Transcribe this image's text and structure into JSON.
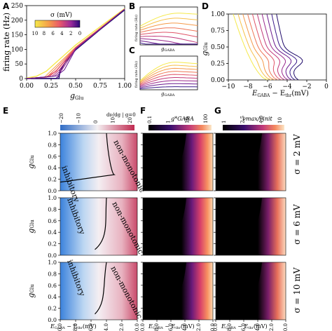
{
  "panel_labels": {
    "A": "A",
    "B": "B",
    "C": "C",
    "D": "D",
    "E": "E",
    "F": "F",
    "G": "G"
  },
  "colors": {
    "sigma_high": "#f5e94a",
    "sigma_mid": "#e8586a",
    "sigma_low": "#3a1a8a",
    "inhibitory": "#3d7fd6",
    "nonmonotonic": "#c9385a",
    "heat_dark": "#000000",
    "heat_mid": "#9b2a8a",
    "heat_bright": "#f7c5a0"
  },
  "panelA": {
    "ylabel": "firing rate (Hz)",
    "xlabel": "g",
    "xlabel_sub": "Glu",
    "yticks": [
      "0",
      "50",
      "100",
      "150",
      "200",
      "250"
    ],
    "xticks": [
      "0.00",
      "0.25",
      "0.50",
      "0.75",
      "1.00"
    ],
    "colorbar_title": "σ (mV)",
    "colorbar_ticks": [
      "10",
      "8",
      "6",
      "4",
      "2",
      "0"
    ]
  },
  "panelB": {
    "ylabel": "firing rate (Hz)",
    "xlabel": "g",
    "xlabel_sub": "GABA"
  },
  "panelC": {
    "ylabel": "firing rate (Hz)",
    "xlabel": "g",
    "xlabel_sub": "GABA"
  },
  "panelD": {
    "ylabel": "g",
    "ylabel_sub": "Glu",
    "xlabel": "E",
    "xlabel_sub1": "GABA",
    "xlabel_mid": " − E",
    "xlabel_sub2": "thr",
    "xlabel_unit": "(mV)",
    "yticks": [
      "0.00",
      "0.25",
      "0.50",
      "0.75",
      "1.00"
    ],
    "xticks": [
      "−10",
      "−8",
      "−6",
      "−4",
      "−2",
      "0"
    ]
  },
  "panelE": {
    "cbar_label": "dν/dg | g=0",
    "cbar_ticks": [
      "−20",
      "−10",
      "0",
      "10",
      "20"
    ],
    "region_inhib": "inhibitory",
    "region_nonmono": "non-monotonic",
    "ylabel": "g",
    "ylabel_sub": "Glu"
  },
  "panelF": {
    "cbar_label": "g*GABA",
    "cbar_ticks": [
      "0.1",
      "1",
      "10",
      "100"
    ]
  },
  "panelG": {
    "cbar_label": "νmax/νinit",
    "cbar_ticks": [
      "1",
      "2.5",
      "4.0",
      "10"
    ]
  },
  "grid": {
    "yticks": [
      "0.0",
      "0.2",
      "0.4",
      "0.6",
      "0.8",
      "1.0"
    ],
    "xticks": [
      "−10.0",
      "−8.0",
      "−6.0",
      "−4.0",
      "−2.0",
      "0.0"
    ],
    "xlabel": "E",
    "xlabel_sub1": "GABA",
    "xlabel_mid": " − E",
    "xlabel_sub2": "thr",
    "xlabel_unit": "(mV)",
    "row_labels": [
      "σ = 2 mV",
      "σ = 6 mV",
      "σ = 10 mV"
    ]
  },
  "chart_data": [
    {
      "type": "line",
      "panel": "A",
      "title": "",
      "xlabel": "g_Glu",
      "ylabel": "firing rate (Hz)",
      "xlim": [
        0,
        1
      ],
      "ylim": [
        0,
        250
      ],
      "series": [
        {
          "name": "σ = 10",
          "x": [
            0,
            0.1,
            0.2,
            0.3,
            0.4,
            0.5,
            0.75,
            1.0
          ],
          "y": [
            2,
            8,
            25,
            55,
            85,
            115,
            178,
            240
          ]
        },
        {
          "name": "σ = 6",
          "x": [
            0,
            0.2,
            0.3,
            0.35,
            0.4,
            0.5,
            0.75,
            1.0
          ],
          "y": [
            0,
            5,
            25,
            45,
            65,
            105,
            172,
            238
          ]
        },
        {
          "name": "σ = 2",
          "x": [
            0,
            0.3,
            0.33,
            0.36,
            0.4,
            0.5,
            0.75,
            1.0
          ],
          "y": [
            0,
            0,
            10,
            35,
            60,
            100,
            170,
            236
          ]
        },
        {
          "name": "σ = 0",
          "x": [
            0,
            0.33,
            0.34,
            0.4,
            0.5,
            0.75,
            1.0
          ],
          "y": [
            0,
            0,
            30,
            58,
            98,
            168,
            235
          ]
        }
      ]
    },
    {
      "type": "heatmap",
      "panel": "E/F/G",
      "x_range": [
        -10,
        0
      ],
      "y_range": [
        0,
        1
      ],
      "rows": [
        "σ = 2 mV",
        "σ = 6 mV",
        "σ = 10 mV"
      ]
    }
  ]
}
